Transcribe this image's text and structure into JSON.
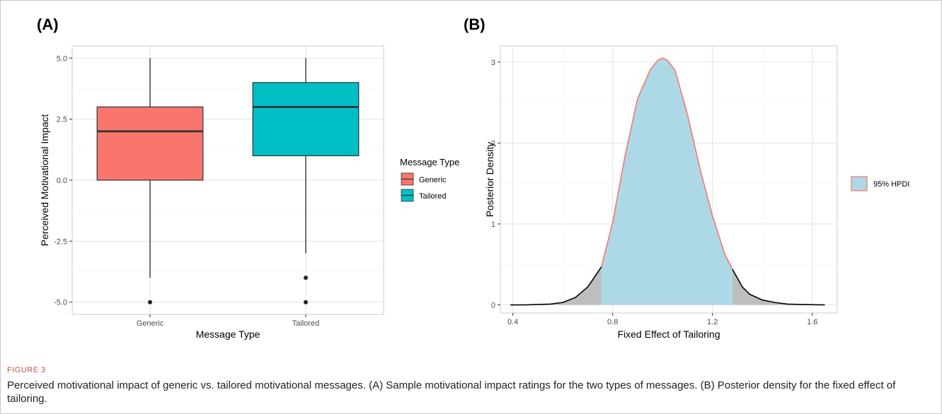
{
  "chart_data": [
    {
      "type": "box",
      "panel_label": "(A)",
      "xlabel": "Message Type",
      "ylabel": "Perceived Motivational Impact",
      "categories": [
        "Generic",
        "Tailored"
      ],
      "ylim": [
        -5.5,
        5.5
      ],
      "yticks": [
        -5.0,
        -2.5,
        0.0,
        2.5,
        5.0
      ],
      "ytick_labels": [
        "-5.0",
        "-2.5",
        "0.0",
        "2.5",
        "5.0"
      ],
      "grid": true,
      "legend": {
        "title": "Message Type",
        "placement": "right",
        "entries": [
          "Generic",
          "Tailored"
        ]
      },
      "boxes": [
        {
          "name": "Generic",
          "color": "#f8766d",
          "whisker_low": -4,
          "q1": 0,
          "median": 2,
          "q3": 3,
          "whisker_high": 5,
          "outliers": [
            -5
          ]
        },
        {
          "name": "Tailored",
          "color": "#00bfc4",
          "whisker_low": -3,
          "q1": 1,
          "median": 3,
          "q3": 4,
          "whisker_high": 5,
          "outliers": [
            -4,
            -5
          ]
        }
      ]
    },
    {
      "type": "area",
      "panel_label": "(B)",
      "xlabel": "Fixed Effect of Tailoring",
      "ylabel": "Posterior Density",
      "xlim": [
        0.35,
        1.7
      ],
      "ylim": [
        -0.1,
        3.2
      ],
      "xticks": [
        0.4,
        0.8,
        1.2,
        1.6
      ],
      "xtick_labels": [
        "0.4",
        "0.8",
        "1.2",
        "1.6"
      ],
      "yticks": [
        0,
        1,
        2,
        3
      ],
      "ytick_labels": [
        "0",
        "1",
        "2",
        "3"
      ],
      "grid": true,
      "hpdi": [
        0.755,
        1.28
      ],
      "hpdi_color": "#add8e6",
      "tail_color": "#bebebe",
      "outline_color": "#f8766d",
      "legend": {
        "placement": "right",
        "entries": [
          "95% HPDI"
        ]
      },
      "x": [
        0.39,
        0.45,
        0.5,
        0.55,
        0.6,
        0.65,
        0.7,
        0.755,
        0.8,
        0.85,
        0.9,
        0.95,
        0.98,
        1.0,
        1.02,
        1.05,
        1.1,
        1.15,
        1.2,
        1.25,
        1.28,
        1.32,
        1.35,
        1.4,
        1.45,
        1.5,
        1.55,
        1.65
      ],
      "y": [
        0.0,
        0.0,
        0.005,
        0.01,
        0.03,
        0.09,
        0.22,
        0.47,
        1.02,
        1.85,
        2.55,
        2.9,
        3.02,
        3.05,
        3.02,
        2.9,
        2.35,
        1.68,
        1.1,
        0.62,
        0.44,
        0.22,
        0.13,
        0.06,
        0.03,
        0.01,
        0.005,
        0.0
      ]
    }
  ],
  "caption": {
    "label": "FIGURE 3",
    "text": "Perceived motivational impact of generic vs. tailored motivational messages. (A) Sample motivational impact ratings for the two types of messages. (B) Posterior density for the fixed effect of tailoring."
  }
}
